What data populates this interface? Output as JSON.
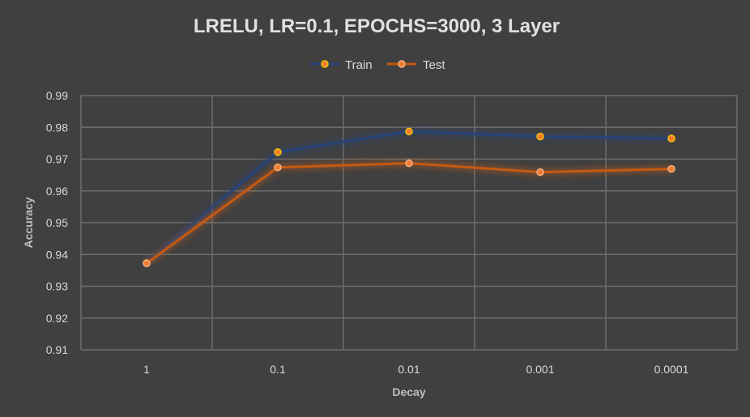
{
  "chart_data": {
    "type": "line",
    "title": "LRELU, LR=0.1, EPOCHS=3000, 3 Layer",
    "xlabel": "Decay",
    "ylabel": "Accuracy",
    "categories": [
      "1",
      "0.1",
      "0.01",
      "0.001",
      "0.0001"
    ],
    "ylim": [
      0.91,
      0.99
    ],
    "yticks": [
      "0.91",
      "0.92",
      "0.93",
      "0.94",
      "0.95",
      "0.96",
      "0.97",
      "0.98",
      "0.99"
    ],
    "grid": true,
    "legend_position": "top",
    "series": [
      {
        "name": "Train",
        "values": [
          0.9373,
          0.9722,
          0.9787,
          0.9771,
          0.9765
        ],
        "line_color": "#264478",
        "marker_fill": "#ed7d31",
        "marker_stroke": "#ffc000"
      },
      {
        "name": "Test",
        "values": [
          0.9372,
          0.9674,
          0.9687,
          0.9659,
          0.9669
        ],
        "line_color": "#c55a11",
        "marker_fill": "#ed7d31",
        "marker_stroke": "#f4b183"
      }
    ]
  }
}
